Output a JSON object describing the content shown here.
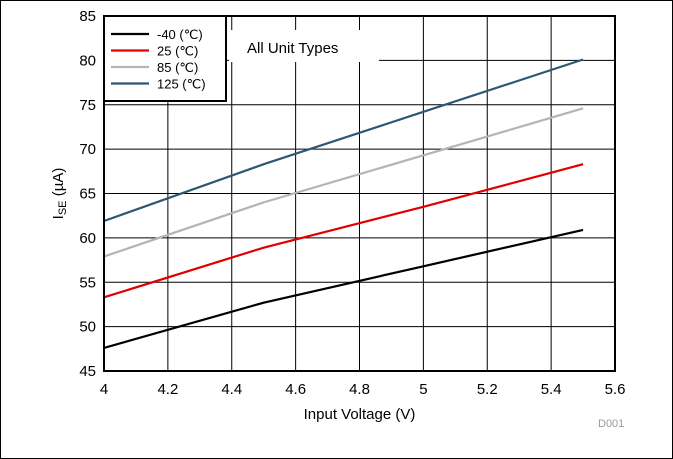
{
  "chart_data": {
    "type": "line",
    "x": [
      4.0,
      4.5,
      5.0,
      5.5
    ],
    "series": [
      {
        "name": "-40 (℃)",
        "color": "#000000",
        "values": [
          47.6,
          52.7,
          56.8,
          60.9
        ]
      },
      {
        "name": "25 (℃)",
        "color": "#e00000",
        "values": [
          53.3,
          58.9,
          63.5,
          68.3
        ]
      },
      {
        "name": "85 (℃)",
        "color": "#b4b4b4",
        "values": [
          57.9,
          64.0,
          69.3,
          74.6
        ]
      },
      {
        "name": "125 (℃)",
        "color": "#2f5870",
        "values": [
          61.9,
          68.3,
          74.2,
          80.1
        ]
      }
    ],
    "xlabel": "Input Voltage (V)",
    "ylabel_main": "I",
    "ylabel_sub": "SE",
    "ylabel_unit": " (µA)",
    "xlim": [
      4,
      5.6
    ],
    "ylim": [
      45,
      85
    ],
    "xticks": [
      "4",
      "4.2",
      "4.4",
      "4.6",
      "4.8",
      "5",
      "5.2",
      "5.4",
      "5.6"
    ],
    "yticks": [
      "45",
      "50",
      "55",
      "60",
      "65",
      "70",
      "75",
      "80",
      "85"
    ],
    "grid": true,
    "legend_position": "top-left",
    "annotation": "All Unit Types",
    "figure_code": "D001"
  }
}
